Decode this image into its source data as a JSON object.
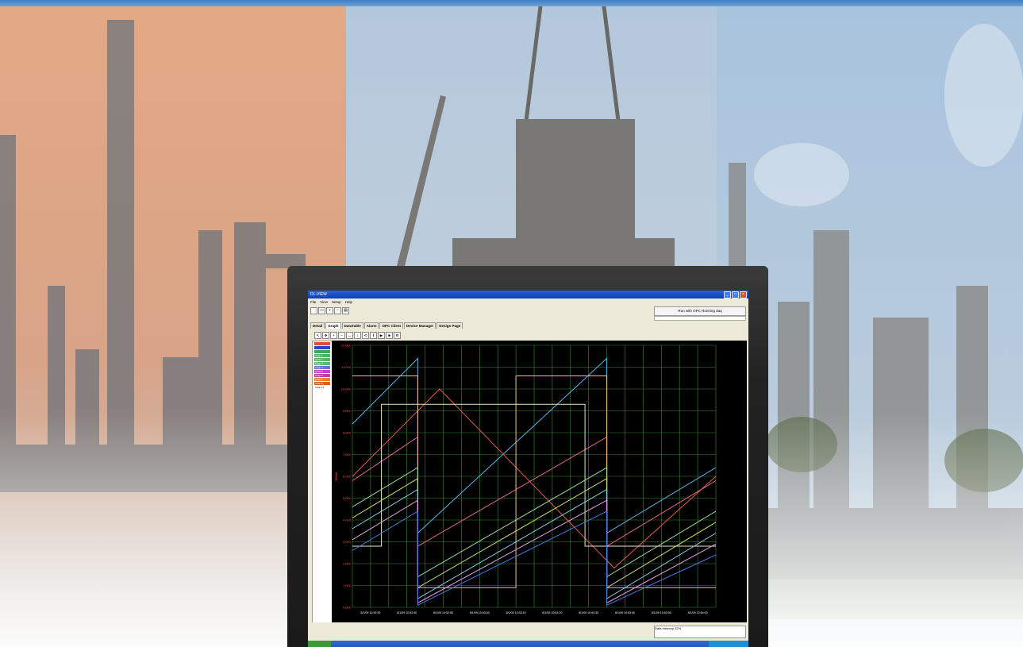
{
  "app": {
    "window_title": "DL-VIEW",
    "menu": [
      "File",
      "View",
      "Setup",
      "Help"
    ],
    "status_message": "Run with OPC Running daq",
    "tabs": [
      "Detail",
      "Graph",
      "DataTable",
      "Alarm",
      "OPC Client",
      "Device Manager",
      "Design Page"
    ],
    "active_tab": "Graph",
    "footer_text": "Data memory 32%"
  },
  "chart_data": {
    "type": "line",
    "ylabel": "Value",
    "y_ticks": [
      "12.000",
      "11.000",
      "10.000",
      "9.000",
      "8.000",
      "7.000",
      "6.000",
      "5.000",
      "4.000",
      "3.000",
      "2.000",
      "1.000",
      "0.000"
    ],
    "ylim": [
      0,
      12
    ],
    "x_ticks": [
      "8/1/09 10:52:30",
      "8/1/09 10:52:40",
      "8/1/09 10:52:50",
      "8/1/09 10:53:00",
      "8/1/09 10:53:10",
      "8/1/09 10:53:20",
      "8/1/09 10:53:30",
      "8/1/09 10:53:40",
      "8/1/09 10:53:50",
      "8/1/09 10:54:00"
    ],
    "xlim": [
      0,
      100
    ],
    "grid": true,
    "legend_placement": "left",
    "series": [
      {
        "name": "Chan 1",
        "color": "#5ab6e6",
        "style": "sawtooth",
        "values": [
          [
            0,
            8.4
          ],
          [
            18,
            11.4
          ],
          [
            18,
            3.4
          ],
          [
            70,
            11.4
          ],
          [
            70,
            3.4
          ],
          [
            100,
            6.4
          ]
        ]
      },
      {
        "name": "Chan 2",
        "color": "#e25a4a",
        "style": "triangle",
        "values": [
          [
            0,
            6.0
          ],
          [
            24,
            10.0
          ],
          [
            72,
            1.8
          ],
          [
            100,
            6.0
          ]
        ]
      },
      {
        "name": "Chan 3",
        "color": "#e66a8a",
        "style": "sawtooth",
        "values": [
          [
            0,
            5.8
          ],
          [
            18,
            7.8
          ],
          [
            18,
            2.8
          ],
          [
            70,
            7.8
          ],
          [
            70,
            2.8
          ],
          [
            100,
            5.8
          ]
        ]
      },
      {
        "name": "Chan 4",
        "color": "#f0c090",
        "style": "square",
        "values": [
          [
            0,
            10.6
          ],
          [
            18,
            10.6
          ],
          [
            18,
            0.9
          ],
          [
            45,
            0.9
          ],
          [
            45,
            10.6
          ],
          [
            70,
            10.6
          ],
          [
            70,
            0.9
          ],
          [
            100,
            0.9
          ]
        ]
      },
      {
        "name": "Chan 5",
        "color": "#e8e8c0",
        "style": "square",
        "values": [
          [
            0,
            2.8
          ],
          [
            8,
            2.8
          ],
          [
            8,
            9.3
          ],
          [
            64,
            9.3
          ],
          [
            64,
            2.8
          ],
          [
            100,
            2.8
          ]
        ]
      },
      {
        "name": "Chan 6",
        "color": "#a0e0a0",
        "style": "sawtooth",
        "values": [
          [
            0,
            4.6
          ],
          [
            18,
            6.4
          ],
          [
            18,
            1.4
          ],
          [
            70,
            6.4
          ],
          [
            70,
            1.4
          ],
          [
            100,
            4.4
          ]
        ]
      },
      {
        "name": "Chan 7",
        "color": "#c6e26a",
        "style": "sawtooth",
        "values": [
          [
            0,
            4.1
          ],
          [
            18,
            5.9
          ],
          [
            18,
            0.9
          ],
          [
            70,
            5.9
          ],
          [
            70,
            0.9
          ],
          [
            100,
            3.9
          ]
        ]
      },
      {
        "name": "Chan 8",
        "color": "#8ad0e6",
        "style": "sawtooth",
        "values": [
          [
            0,
            3.6
          ],
          [
            18,
            5.4
          ],
          [
            18,
            0.4
          ],
          [
            70,
            5.4
          ],
          [
            70,
            0.4
          ],
          [
            100,
            3.4
          ]
        ]
      },
      {
        "name": "Chan 9",
        "color": "#e4a0e4",
        "style": "sawtooth",
        "values": [
          [
            0,
            3.1
          ],
          [
            18,
            4.9
          ],
          [
            18,
            0.2
          ],
          [
            70,
            4.9
          ],
          [
            70,
            0.2
          ],
          [
            100,
            2.9
          ]
        ]
      },
      {
        "name": "Chan 10",
        "color": "#4a7ae0",
        "style": "sawtooth",
        "values": [
          [
            0,
            2.6
          ],
          [
            18,
            4.4
          ],
          [
            18,
            0.1
          ],
          [
            70,
            4.4
          ],
          [
            70,
            0.1
          ],
          [
            100,
            2.4
          ]
        ]
      }
    ]
  },
  "legend_colors": [
    "#e24a3a",
    "#2a44c8",
    "#3aa860",
    "#4ab070",
    "#58b45c",
    "#62b870",
    "#7070d0",
    "#c840c8",
    "#c040a0",
    "#f08030",
    "#e06020",
    "#ffffff"
  ],
  "legend_labels": [
    "",
    "",
    "",
    "Chan 1",
    "Chan 2",
    "Chan 3",
    "Chan 4",
    "Chan 5",
    "Chan 6",
    "Chan 7",
    "Chan 8",
    "Chan 11"
  ]
}
